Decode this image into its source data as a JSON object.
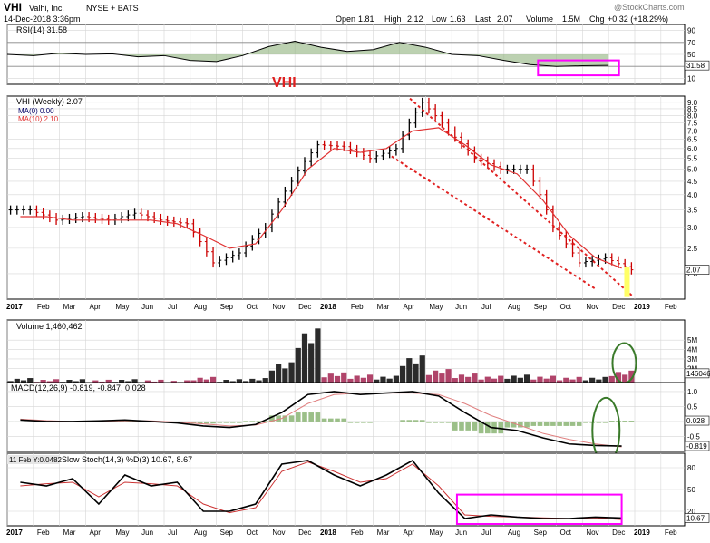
{
  "header": {
    "symbol": "VHI",
    "company": "Valhi, Inc.",
    "exchange": "NYSE + BATS",
    "date": "14-Dec-2018 3:36pm",
    "open_label": "Open",
    "open": "1.81",
    "high_label": "High",
    "high": "2.12",
    "low_label": "Low",
    "low": "1.63",
    "last_label": "Last",
    "last": "2.07",
    "volume_label": "Volume",
    "volume": "1.5M",
    "chg_label": "Chg",
    "chg": "+0.32 (+18.29%)",
    "watermark": "@StockCharts.com",
    "annotation": "VHI"
  },
  "colors": {
    "up_bar": "#000000",
    "down_bar": "#cc0000",
    "ma": "#e03030",
    "vol_up": "#2b2b2b",
    "vol_down": "#b0446a",
    "signal": "#e08080",
    "annotation": "#ff00ff",
    "annotation_green": "#3a7a2a",
    "trendline": "#e02020",
    "grid": "#d6d6d6"
  },
  "chart_data": [
    {
      "type": "line",
      "panel": "rsi",
      "title": "RSI(14) 31.58",
      "last_value_label": "31.58",
      "ticks": [
        "90",
        "70",
        "50",
        "10"
      ],
      "ylim": [
        0,
        100
      ],
      "reference_levels": [
        70,
        30
      ],
      "x": [
        "2017-01",
        "2017-02",
        "2017-03",
        "2017-04",
        "2017-05",
        "2017-06",
        "2017-07",
        "2017-08",
        "2017-09",
        "2017-10",
        "2017-11",
        "2017-12",
        "2018-01",
        "2018-02",
        "2018-03",
        "2018-04",
        "2018-05",
        "2018-06",
        "2018-07",
        "2018-08",
        "2018-09",
        "2018-10",
        "2018-11",
        "2018-12"
      ],
      "values": [
        50,
        48,
        52,
        50,
        51,
        46,
        48,
        40,
        38,
        48,
        63,
        72,
        62,
        55,
        58,
        70,
        62,
        50,
        48,
        40,
        33,
        30,
        31,
        31.58
      ]
    },
    {
      "type": "bar",
      "panel": "price",
      "title": "VHI (Weekly) 2.07",
      "series_labels": [
        "MA(0) 0.00",
        "MA(10) 2.10"
      ],
      "last_value_label": "2.07",
      "ticks": [
        "9.0",
        "8.5",
        "8.0",
        "7.5",
        "7.0",
        "6.5",
        "6.0",
        "5.5",
        "5.0",
        "4.5",
        "4.0",
        "3.5",
        "3.0",
        "2.5",
        "2.0"
      ],
      "ylim": [
        1.6,
        9.5
      ],
      "log_scale": true,
      "x_axis_labels": [
        "2017",
        "Feb",
        "Mar",
        "Apr",
        "May",
        "Jun",
        "Jul",
        "Aug",
        "Sep",
        "Oct",
        "Nov",
        "Dec",
        "2018",
        "Feb",
        "Mar",
        "Apr",
        "May",
        "Jun",
        "Jul",
        "Aug",
        "Sep",
        "Oct",
        "Nov",
        "Dec",
        "2019",
        "Feb"
      ],
      "x": [
        "2017-01",
        "2017-02",
        "2017-03",
        "2017-04",
        "2017-05",
        "2017-06",
        "2017-07",
        "2017-08",
        "2017-09",
        "2017-10",
        "2017-11",
        "2017-12",
        "2018-01",
        "2018-02",
        "2018-03",
        "2018-04",
        "2018-05",
        "2018-06",
        "2018-07",
        "2018-08",
        "2018-09",
        "2018-10",
        "2018-11",
        "2018-12"
      ],
      "close": [
        3.5,
        3.2,
        3.3,
        3.2,
        3.4,
        3.2,
        3.1,
        2.2,
        2.4,
        3.0,
        4.5,
        6.2,
        6.1,
        5.5,
        6.0,
        9.0,
        7.0,
        5.5,
        5.0,
        5.0,
        3.0,
        2.2,
        2.3,
        2.07
      ],
      "ma10": [
        3.3,
        3.3,
        3.2,
        3.2,
        3.2,
        3.2,
        3.1,
        2.8,
        2.5,
        2.6,
        3.5,
        5.0,
        6.0,
        5.8,
        6.0,
        7.0,
        7.2,
        6.2,
        5.2,
        4.8,
        3.8,
        2.8,
        2.3,
        2.1
      ],
      "annotation": "VHI"
    },
    {
      "type": "bar",
      "panel": "volume",
      "title": "Volume 1,460,462",
      "last_value_label": "1460462",
      "ticks": [
        "5M",
        "4M",
        "3M",
        "2M"
      ],
      "ylim": [
        0,
        5500000
      ],
      "x": [
        "2017-01",
        "2017-02",
        "2017-03",
        "2017-04",
        "2017-05",
        "2017-06",
        "2017-07",
        "2017-08",
        "2017-09",
        "2017-10",
        "2017-11",
        "2017-12",
        "2018-01",
        "2018-02",
        "2018-03",
        "2018-04",
        "2018-05",
        "2018-06",
        "2018-07",
        "2018-08",
        "2018-09",
        "2018-10",
        "2018-11",
        "2018-12"
      ],
      "values": [
        800000,
        700000,
        700000,
        650000,
        700000,
        650000,
        600000,
        900000,
        700000,
        800000,
        2200000,
        5200000,
        1300000,
        1100000,
        1000000,
        2800000,
        1600000,
        1200000,
        1000000,
        1100000,
        1000000,
        900000,
        900000,
        1460462
      ]
    },
    {
      "type": "line",
      "panel": "macd",
      "title": "MACD(12,26,9) -0.819, -0.847, 0.028",
      "last_value_labels": [
        "0.028",
        "-0.819"
      ],
      "ticks": [
        "1.0",
        "0.5",
        "0.0",
        "-0.5"
      ],
      "ylim": [
        -1.0,
        1.3
      ],
      "x": [
        "2017-01",
        "2017-02",
        "2017-03",
        "2017-04",
        "2017-05",
        "2017-06",
        "2017-07",
        "2017-08",
        "2017-09",
        "2017-10",
        "2017-11",
        "2017-12",
        "2018-01",
        "2018-02",
        "2018-03",
        "2018-04",
        "2018-05",
        "2018-06",
        "2018-07",
        "2018-08",
        "2018-09",
        "2018-10",
        "2018-11",
        "2018-12"
      ],
      "series": [
        {
          "values": [
            0.05,
            0.0,
            0.0,
            0.02,
            0.05,
            0.0,
            -0.05,
            -0.15,
            -0.2,
            -0.1,
            0.3,
            0.9,
            1.0,
            0.9,
            0.95,
            1.0,
            0.85,
            0.3,
            -0.2,
            -0.3,
            -0.55,
            -0.75,
            -0.8,
            -0.819
          ]
        },
        {
          "values": [
            0.08,
            0.03,
            0.0,
            0.01,
            0.02,
            0.02,
            -0.02,
            -0.08,
            -0.15,
            -0.12,
            0.1,
            0.6,
            0.9,
            0.95,
            0.95,
            0.95,
            0.9,
            0.6,
            0.2,
            -0.1,
            -0.4,
            -0.6,
            -0.75,
            -0.847
          ]
        },
        {
          "values": [
            -0.03,
            -0.03,
            0.0,
            0.01,
            0.03,
            -0.02,
            -0.03,
            -0.07,
            -0.05,
            0.02,
            0.2,
            0.3,
            0.1,
            -0.05,
            0.0,
            0.05,
            -0.05,
            -0.3,
            -0.4,
            -0.2,
            -0.15,
            -0.15,
            -0.05,
            0.028
          ]
        }
      ]
    },
    {
      "type": "line",
      "panel": "stochastic",
      "title": "Slow Stoch(14,3) %D(3) 10.67, 8.67",
      "overlay_text": "11 Feb Y:0.0482",
      "last_value_label": "10.67",
      "ticks": [
        "80",
        "50",
        "20"
      ],
      "ylim": [
        0,
        100
      ],
      "x_axis_labels": [
        "2017",
        "Feb",
        "Mar",
        "Apr",
        "May",
        "Jun",
        "Jul",
        "Aug",
        "Sep",
        "Oct",
        "Nov",
        "Dec",
        "2018",
        "Feb",
        "Mar",
        "Apr",
        "May",
        "Jun",
        "Jul",
        "Aug",
        "Sep",
        "Oct",
        "Nov",
        "Dec",
        "2019",
        "Feb"
      ],
      "x": [
        "2017-01",
        "2017-02",
        "2017-03",
        "2017-04",
        "2017-05",
        "2017-06",
        "2017-07",
        "2017-08",
        "2017-09",
        "2017-10",
        "2017-11",
        "2017-12",
        "2018-01",
        "2018-02",
        "2018-03",
        "2018-04",
        "2018-05",
        "2018-06",
        "2018-07",
        "2018-08",
        "2018-09",
        "2018-10",
        "2018-11",
        "2018-12"
      ],
      "series": [
        {
          "values": [
            60,
            55,
            65,
            30,
            70,
            55,
            60,
            20,
            20,
            30,
            85,
            90,
            70,
            55,
            70,
            90,
            45,
            10,
            15,
            12,
            10,
            10,
            12,
            10.67
          ]
        },
        {
          "values": [
            55,
            58,
            60,
            40,
            60,
            58,
            55,
            30,
            18,
            25,
            75,
            88,
            75,
            60,
            65,
            85,
            55,
            15,
            13,
            12,
            11,
            10,
            11,
            8.67
          ]
        }
      ]
    }
  ]
}
